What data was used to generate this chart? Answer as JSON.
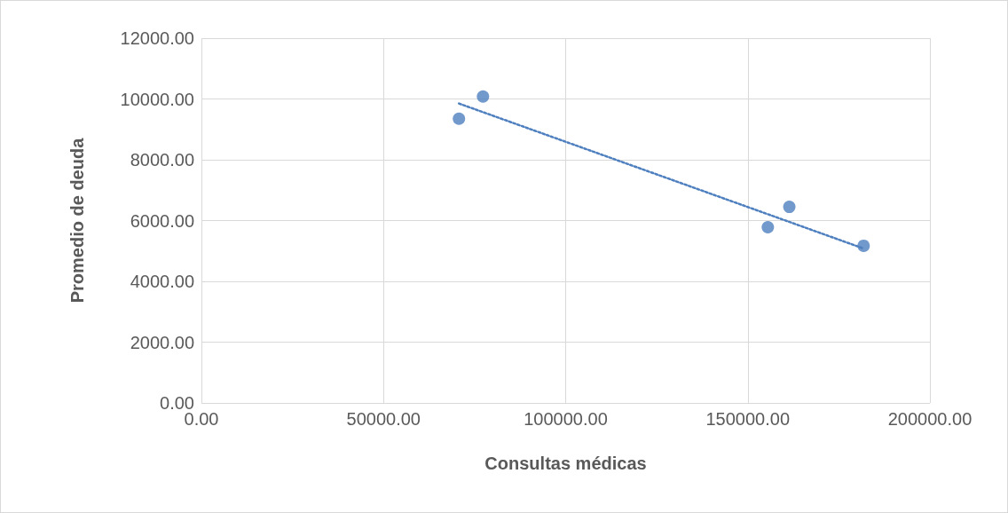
{
  "chart_data": {
    "type": "scatter",
    "xlabel": "Consultas médicas",
    "ylabel": "Promedio de deuda",
    "xlim": [
      0,
      200000
    ],
    "xticks": [
      {
        "value": 0,
        "label": "0.00"
      },
      {
        "value": 50000,
        "label": "50000.00"
      },
      {
        "value": 100000,
        "label": "100000.00"
      },
      {
        "value": 150000,
        "label": "150000.00"
      },
      {
        "value": 200000,
        "label": "200000.00"
      }
    ],
    "ylim": [
      0,
      12000
    ],
    "yticks": [
      {
        "value": 0,
        "label": "0.00"
      },
      {
        "value": 2000,
        "label": "2000.00"
      },
      {
        "value": 4000,
        "label": "4000.00"
      },
      {
        "value": 6000,
        "label": "6000.00"
      },
      {
        "value": 8000,
        "label": "8000.00"
      },
      {
        "value": 10000,
        "label": "10000.00"
      },
      {
        "value": 12000,
        "label": "12000.00"
      }
    ],
    "grid": true,
    "marker": "circle",
    "series": [
      {
        "color": "#4e7fbf",
        "x": [
          70700,
          77300,
          155500,
          161400,
          181800
        ],
        "values": [
          9350,
          10080,
          5780,
          6450,
          5170
        ]
      },
      {
        "type": "line",
        "color": "#4e7fbf",
        "line_style": "dotted",
        "marker": "none",
        "x": [
          70700,
          181800
        ],
        "values": [
          9850,
          5080
        ]
      }
    ]
  }
}
